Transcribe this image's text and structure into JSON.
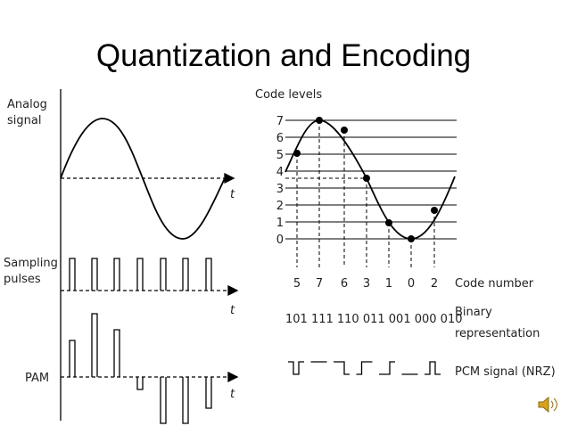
{
  "title": "Quantization and Encoding",
  "left": {
    "analog_label": [
      "Analog",
      "signal"
    ],
    "sampling_label": [
      "Sampling",
      "pulses"
    ],
    "pam_label": "PAM",
    "axis_label": "t"
  },
  "right": {
    "code_levels_label": "Code levels",
    "levels": [
      "0",
      "1",
      "2",
      "3",
      "4",
      "5",
      "6",
      "7"
    ],
    "code_numbers": [
      "5",
      "7",
      "6",
      "3",
      "1",
      "0",
      "2"
    ],
    "code_number_label": "Code number",
    "binary": "101 111 110 011 001 000 010",
    "binary_label": [
      "Binary",
      "representation"
    ],
    "pcm_label": "PCM signal (NRZ)"
  }
}
